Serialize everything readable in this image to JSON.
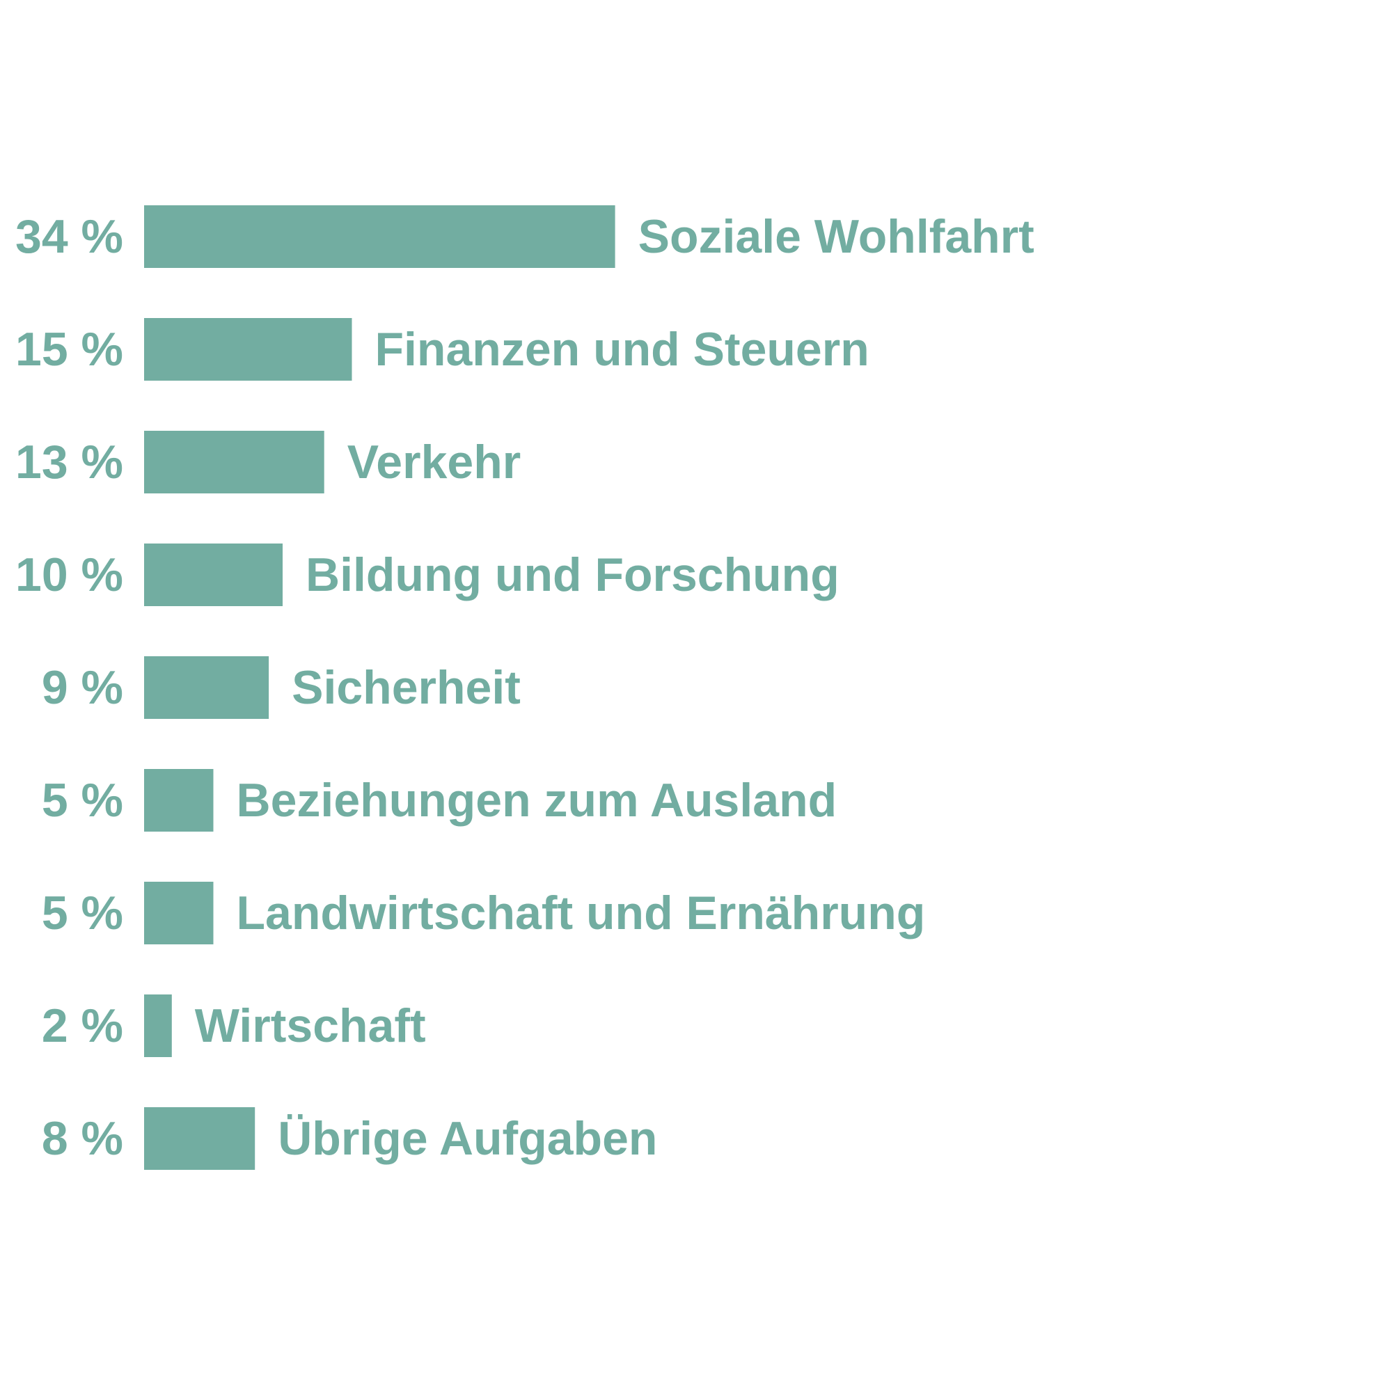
{
  "chart_data": {
    "type": "bar",
    "orientation": "horizontal",
    "color": "#72ADA1",
    "categories": [
      "Soziale Wohlfahrt",
      "Finanzen und Steuern",
      "Verkehr",
      "Bildung und Forschung",
      "Sicherheit",
      "Beziehungen zum Ausland",
      "Landwirtschaft und Ernährung",
      "Wirtschaft",
      "Übrige Aufgaben"
    ],
    "values": [
      34,
      15,
      13,
      10,
      9,
      5,
      5,
      2,
      8
    ],
    "value_labels": [
      "34 %",
      "15 %",
      "13 %",
      "10 %",
      "9 %",
      "5 %",
      "5 %",
      "2 %",
      "8 %"
    ],
    "title": "",
    "xlabel": "",
    "ylabel": "",
    "grid": false
  }
}
